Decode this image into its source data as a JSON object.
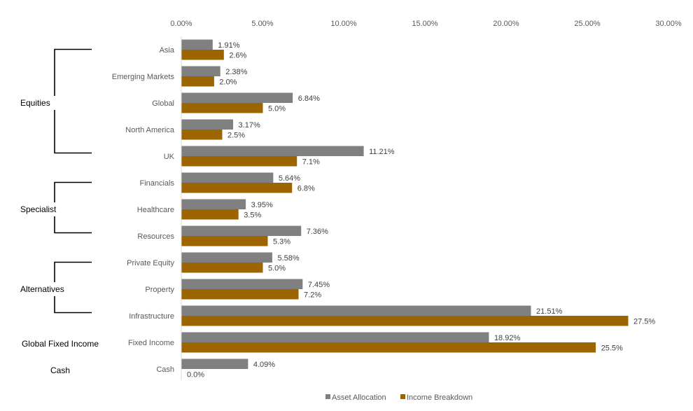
{
  "colors": {
    "asset_allocation": "#808080",
    "income_breakdown": "#9C6500",
    "axis": "#D9D9D9",
    "bracket": "#000000"
  },
  "chart_data": {
    "type": "bar",
    "orientation": "horizontal",
    "x_axis_position": "top",
    "xlim": [
      0,
      30
    ],
    "x_ticks": [
      0,
      5,
      10,
      15,
      20,
      25,
      30
    ],
    "x_tick_labels": [
      "0.00%",
      "5.00%",
      "10.00%",
      "15.00%",
      "20.00%",
      "25.00%",
      "30.00%"
    ],
    "grid": false,
    "legend_position": "bottom",
    "categories": [
      "Asia",
      "Emerging Markets",
      "Global",
      "North America",
      "UK",
      "Financials",
      "Healthcare",
      "Resources",
      "Private Equity",
      "Property",
      "Infrastructure",
      "Fixed Income",
      "Cash"
    ],
    "groups": [
      {
        "label": "Equities",
        "categories": [
          "Asia",
          "Emerging Markets",
          "Global",
          "North America",
          "UK"
        ]
      },
      {
        "label": "Specialist",
        "categories": [
          "Financials",
          "Healthcare",
          "Resources"
        ]
      },
      {
        "label": "Alternatives",
        "categories": [
          "Private Equity",
          "Property",
          "Infrastructure"
        ]
      },
      {
        "label": "Global Fixed Income",
        "categories": [
          "Fixed Income"
        ]
      },
      {
        "label": "Cash",
        "categories": [
          "Cash"
        ]
      }
    ],
    "series": [
      {
        "name": "Asset Allocation",
        "values": [
          1.91,
          2.38,
          6.84,
          3.17,
          11.21,
          5.64,
          3.95,
          7.36,
          5.58,
          7.45,
          21.51,
          18.92,
          4.09
        ],
        "labels": [
          "1.91%",
          "2.38%",
          "6.84%",
          "3.17%",
          "11.21%",
          "5.64%",
          "3.95%",
          "7.36%",
          "5.58%",
          "7.45%",
          "21.51%",
          "18.92%",
          "4.09%"
        ]
      },
      {
        "name": "Income Breakdown",
        "values": [
          2.6,
          2.0,
          5.0,
          2.5,
          7.1,
          6.8,
          3.5,
          5.3,
          5.0,
          7.2,
          27.5,
          25.5,
          0.0
        ],
        "labels": [
          "2.6%",
          "2.0%",
          "5.0%",
          "2.5%",
          "7.1%",
          "6.8%",
          "3.5%",
          "5.3%",
          "5.0%",
          "7.2%",
          "27.5%",
          "25.5%",
          "0.0%"
        ]
      }
    ]
  }
}
